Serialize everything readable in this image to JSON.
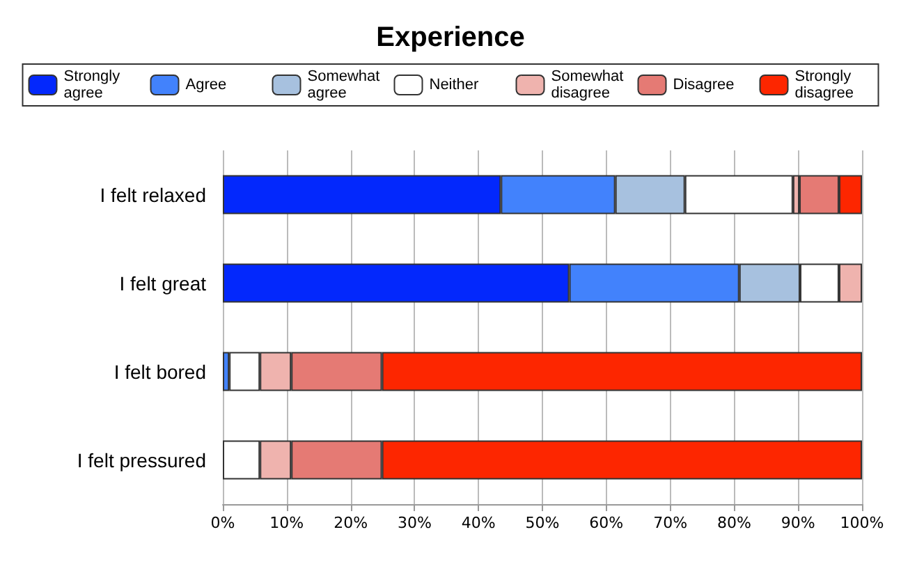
{
  "chart_data": {
    "type": "bar",
    "title": "Experience",
    "orientation": "horizontal",
    "stacked": true,
    "categories": [
      "I felt relaxed",
      "I felt great",
      "I felt bored",
      "I felt pressured"
    ],
    "series": [
      {
        "name": "Strongly agree",
        "color": "#0328fc",
        "values": [
          43.5,
          54.2,
          0,
          0
        ]
      },
      {
        "name": "Agree",
        "color": "#4282fc",
        "values": [
          17.9,
          26.6,
          1.0,
          0
        ]
      },
      {
        "name": "Somewhat agree",
        "color": "#a7c1df",
        "values": [
          10.9,
          9.5,
          0,
          0
        ]
      },
      {
        "name": "Neither",
        "color": "#ffffff",
        "values": [
          16.9,
          6.1,
          4.8,
          5.8
        ]
      },
      {
        "name": "Somewhat disagree",
        "color": "#efb3ae",
        "values": [
          1.0,
          3.6,
          4.9,
          4.9
        ]
      },
      {
        "name": "Disagree",
        "color": "#e57a74",
        "values": [
          6.2,
          0,
          14.2,
          14.2
        ]
      },
      {
        "name": "Strongly disagree",
        "color": "#fd2600",
        "values": [
          3.6,
          0,
          75.1,
          75.1
        ]
      }
    ],
    "xlim": [
      0,
      100
    ],
    "xticks": [
      {
        "value": 0,
        "label": "0%"
      },
      {
        "value": 10,
        "label": "10%"
      },
      {
        "value": 20,
        "label": "20%"
      },
      {
        "value": 30,
        "label": "30%"
      },
      {
        "value": 40,
        "label": "40%"
      },
      {
        "value": 50,
        "label": "50%"
      },
      {
        "value": 60,
        "label": "60%"
      },
      {
        "value": 70,
        "label": "70%"
      },
      {
        "value": 80,
        "label": "80%"
      },
      {
        "value": 90,
        "label": "90%"
      },
      {
        "value": 100,
        "label": "100%"
      }
    ],
    "grid": "x",
    "legend": "top"
  }
}
